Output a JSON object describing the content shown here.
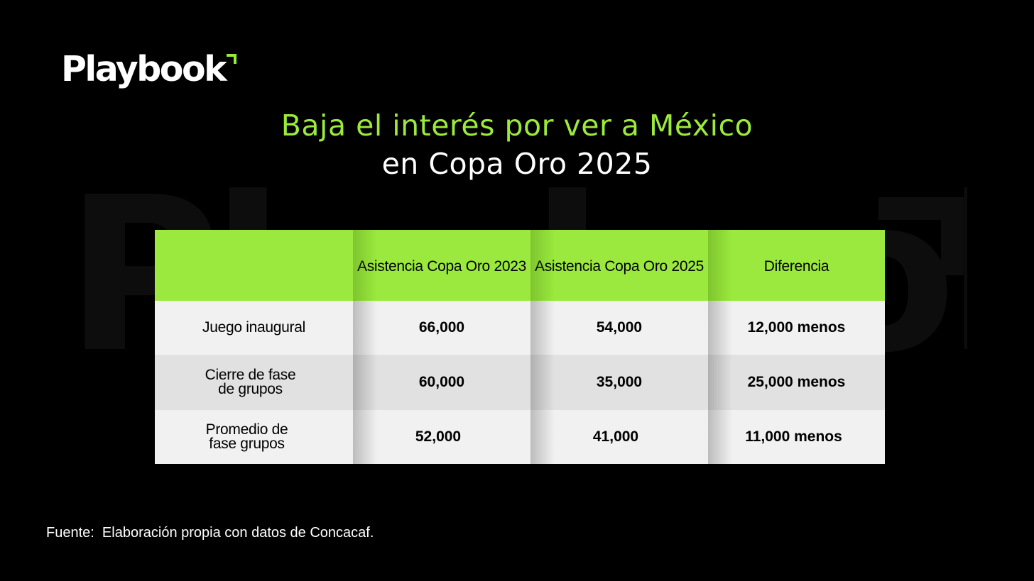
{
  "brand": {
    "logo_text": "Playbook",
    "accent_color": "#9ceb3b"
  },
  "title": {
    "line1": "Baja el interés por ver a México",
    "line2": "en Copa Oro 2025"
  },
  "chart_data": {
    "type": "table",
    "columns": [
      "",
      "Asistencia Copa Oro 2023",
      "Asistencia Copa Oro 2025",
      "Diferencia"
    ],
    "rows": [
      {
        "label": "Juego inaugural",
        "asistencia_2023": "66,000",
        "asistencia_2025": "54,000",
        "diferencia": "12,000 menos"
      },
      {
        "label": "Cierre de fase de grupos",
        "asistencia_2023": "60,000",
        "asistencia_2025": "35,000",
        "diferencia": "25,000 menos"
      },
      {
        "label": "Promedio de fase grupos",
        "asistencia_2023": "52,000",
        "asistencia_2025": "41,000",
        "diferencia": "11,000 menos"
      }
    ]
  },
  "source": "Fuente:  Elaboración propia con datos de Concacaf."
}
